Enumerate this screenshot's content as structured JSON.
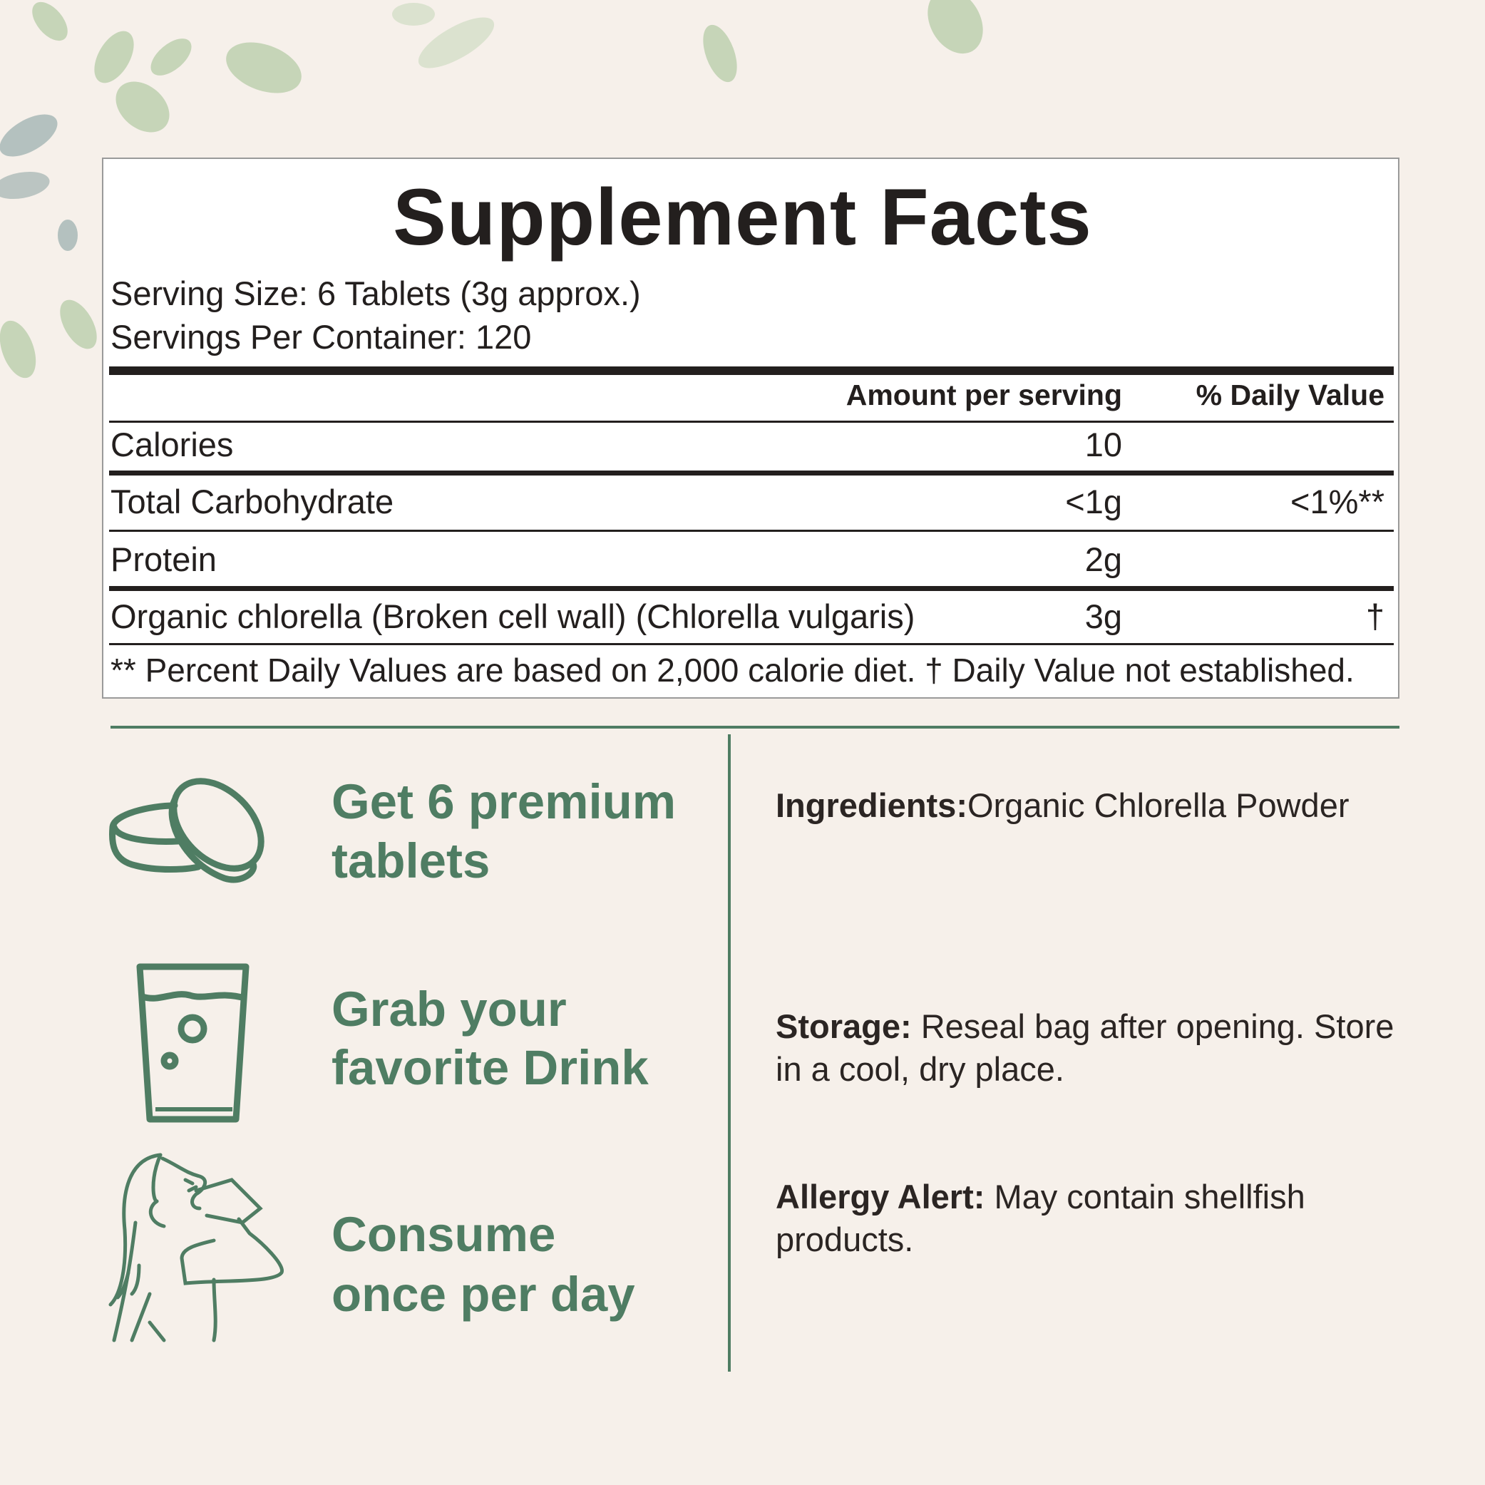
{
  "facts": {
    "title": "Supplement Facts",
    "serving_size": "Serving Size: 6 Tablets (3g approx.)",
    "servings_per_container": "Servings Per Container: 120",
    "header_amount": "Amount per serving",
    "header_dv": "% Daily Value",
    "rows": [
      {
        "name": "Calories",
        "amount": "10",
        "dv": ""
      },
      {
        "name": "Total Carbohydrate",
        "amount": "<1g",
        "dv": "<1%**"
      },
      {
        "name": "Protein",
        "amount": "2g",
        "dv": ""
      },
      {
        "name": "Organic chlorella (Broken cell wall) (Chlorella vulgaris)",
        "amount": "3g",
        "dv": "†"
      }
    ],
    "footnote": "** Percent Daily Values are based on 2,000 calorie diet. † Daily Value not established."
  },
  "steps": [
    {
      "icon": "tablets-icon",
      "line1": "Get 6 premium",
      "line2": "tablets"
    },
    {
      "icon": "glass-icon",
      "line1": "Grab your",
      "line2": "favorite Drink"
    },
    {
      "icon": "woman-drinking-icon",
      "line1": "Consume",
      "line2": "once per day"
    }
  ],
  "info": {
    "ingredients_label": "Ingredients:",
    "ingredients_value": "Organic Chlorella Powder",
    "storage_label": "Storage:",
    "storage_value": " Reseal bag after opening. Store in a cool, dry place.",
    "allergy_label": "Allergy Alert:",
    "allergy_value": " May contain shellfish products."
  },
  "colors": {
    "accent": "#4f7d63",
    "background": "#f6f0ea",
    "text": "#231f1e"
  }
}
